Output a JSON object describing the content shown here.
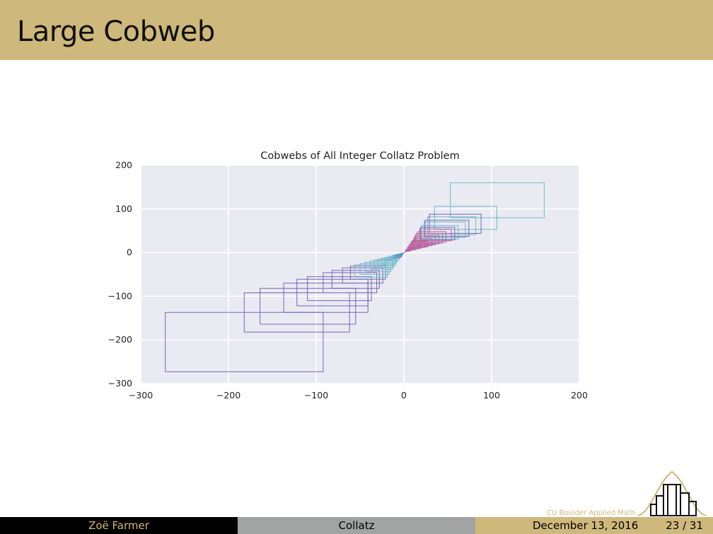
{
  "slide": {
    "title": "Large Cobweb"
  },
  "footer": {
    "author": "Zoë Farmer",
    "topic": "Collatz",
    "date": "December 13, 2016",
    "page": "23 / 31",
    "institution": "CU Boulder Applied Math"
  },
  "colors": {
    "header": "#cfb87c",
    "plot_bg": "#eaeaf2",
    "footer_left": "#000000",
    "footer_mid": "#a2a4a3",
    "footer_right": "#cfb87c",
    "series_palette": [
      "#7268b8",
      "#6fb8c8",
      "#b85f9a",
      "#5f92c8",
      "#4fb3b3"
    ]
  },
  "chart_data": {
    "type": "line",
    "title": "Cobwebs of All Integer Collatz Problem",
    "xlabel": "",
    "ylabel": "",
    "xlim": [
      -300,
      200
    ],
    "ylim": [
      -300,
      200
    ],
    "xticks": [
      -300,
      -200,
      -100,
      0,
      100,
      200
    ],
    "yticks": [
      -300,
      -200,
      -100,
      0,
      100,
      200
    ],
    "xtick_labels": [
      "−300",
      "−200",
      "−100",
      "0",
      "100",
      "200"
    ],
    "ytick_labels": [
      "−300",
      "−200",
      "−100",
      "0",
      "100",
      "200"
    ],
    "grid": true,
    "series": [
      {
        "color": "#7268b8",
        "rects": [
          [
            -272,
            -273,
            -92,
            -137
          ],
          [
            -182,
            -182,
            -62,
            -92
          ],
          [
            -164,
            -164,
            -55,
            -82
          ],
          [
            -137,
            -137,
            -41,
            -70
          ],
          [
            -122,
            -122,
            -41,
            -61
          ],
          [
            -110,
            -110,
            -37,
            -55
          ],
          [
            -92,
            -92,
            -31,
            -46
          ],
          [
            -82,
            -82,
            -28,
            -41
          ],
          [
            -70,
            -70,
            -24,
            -35
          ],
          [
            -61,
            -61,
            -21,
            -31
          ]
        ]
      },
      {
        "color": "#6fb8c8",
        "rects": [
          [
            53,
            80,
            160,
            160
          ],
          [
            35,
            53,
            106,
            106
          ],
          [
            27,
            41,
            82,
            82
          ],
          [
            23,
            35,
            70,
            70
          ],
          [
            20,
            31,
            62,
            62
          ],
          [
            -56,
            -56,
            -19,
            -28
          ],
          [
            -50,
            -50,
            -17,
            -25
          ],
          [
            -44,
            -44,
            -15,
            -22
          ],
          [
            -38,
            -38,
            -13,
            -19
          ],
          [
            -34,
            -34,
            -12,
            -17
          ],
          [
            -30,
            -30,
            -10,
            -15
          ],
          [
            -26,
            -26,
            -9,
            -13
          ],
          [
            -22,
            -22,
            -8,
            -11
          ],
          [
            -18,
            -18,
            -6,
            -9
          ],
          [
            -14,
            -14,
            -5,
            -7
          ]
        ]
      },
      {
        "color": "#7268b8",
        "rects": [
          [
            29,
            44,
            88,
            88
          ],
          [
            24,
            37,
            74,
            74
          ],
          [
            19,
            29,
            58,
            58
          ]
        ]
      },
      {
        "color": "#b85f9a",
        "rects": [
          [
            18,
            27,
            54,
            54
          ],
          [
            16,
            24,
            48,
            48
          ],
          [
            14,
            22,
            44,
            44
          ],
          [
            13,
            20,
            40,
            40
          ],
          [
            12,
            18,
            36,
            36
          ],
          [
            11,
            16,
            32,
            32
          ],
          [
            10,
            14,
            28,
            28
          ],
          [
            9,
            13,
            26,
            26
          ],
          [
            8,
            12,
            24,
            24
          ],
          [
            7,
            10,
            20,
            20
          ],
          [
            6,
            9,
            18,
            18
          ],
          [
            5,
            7,
            14,
            14
          ],
          [
            4,
            6,
            12,
            12
          ],
          [
            3,
            4,
            8,
            8
          ],
          [
            2,
            3,
            6,
            6
          ]
        ]
      },
      {
        "color": "#5f92c8",
        "rects": [
          [
            -12,
            -12,
            -4,
            -6
          ],
          [
            -10,
            -10,
            -3,
            -5
          ],
          [
            -8,
            -8,
            -2,
            -4
          ],
          [
            -6,
            -6,
            -2,
            -3
          ],
          [
            -4,
            -4,
            -1,
            -2
          ]
        ]
      }
    ]
  }
}
